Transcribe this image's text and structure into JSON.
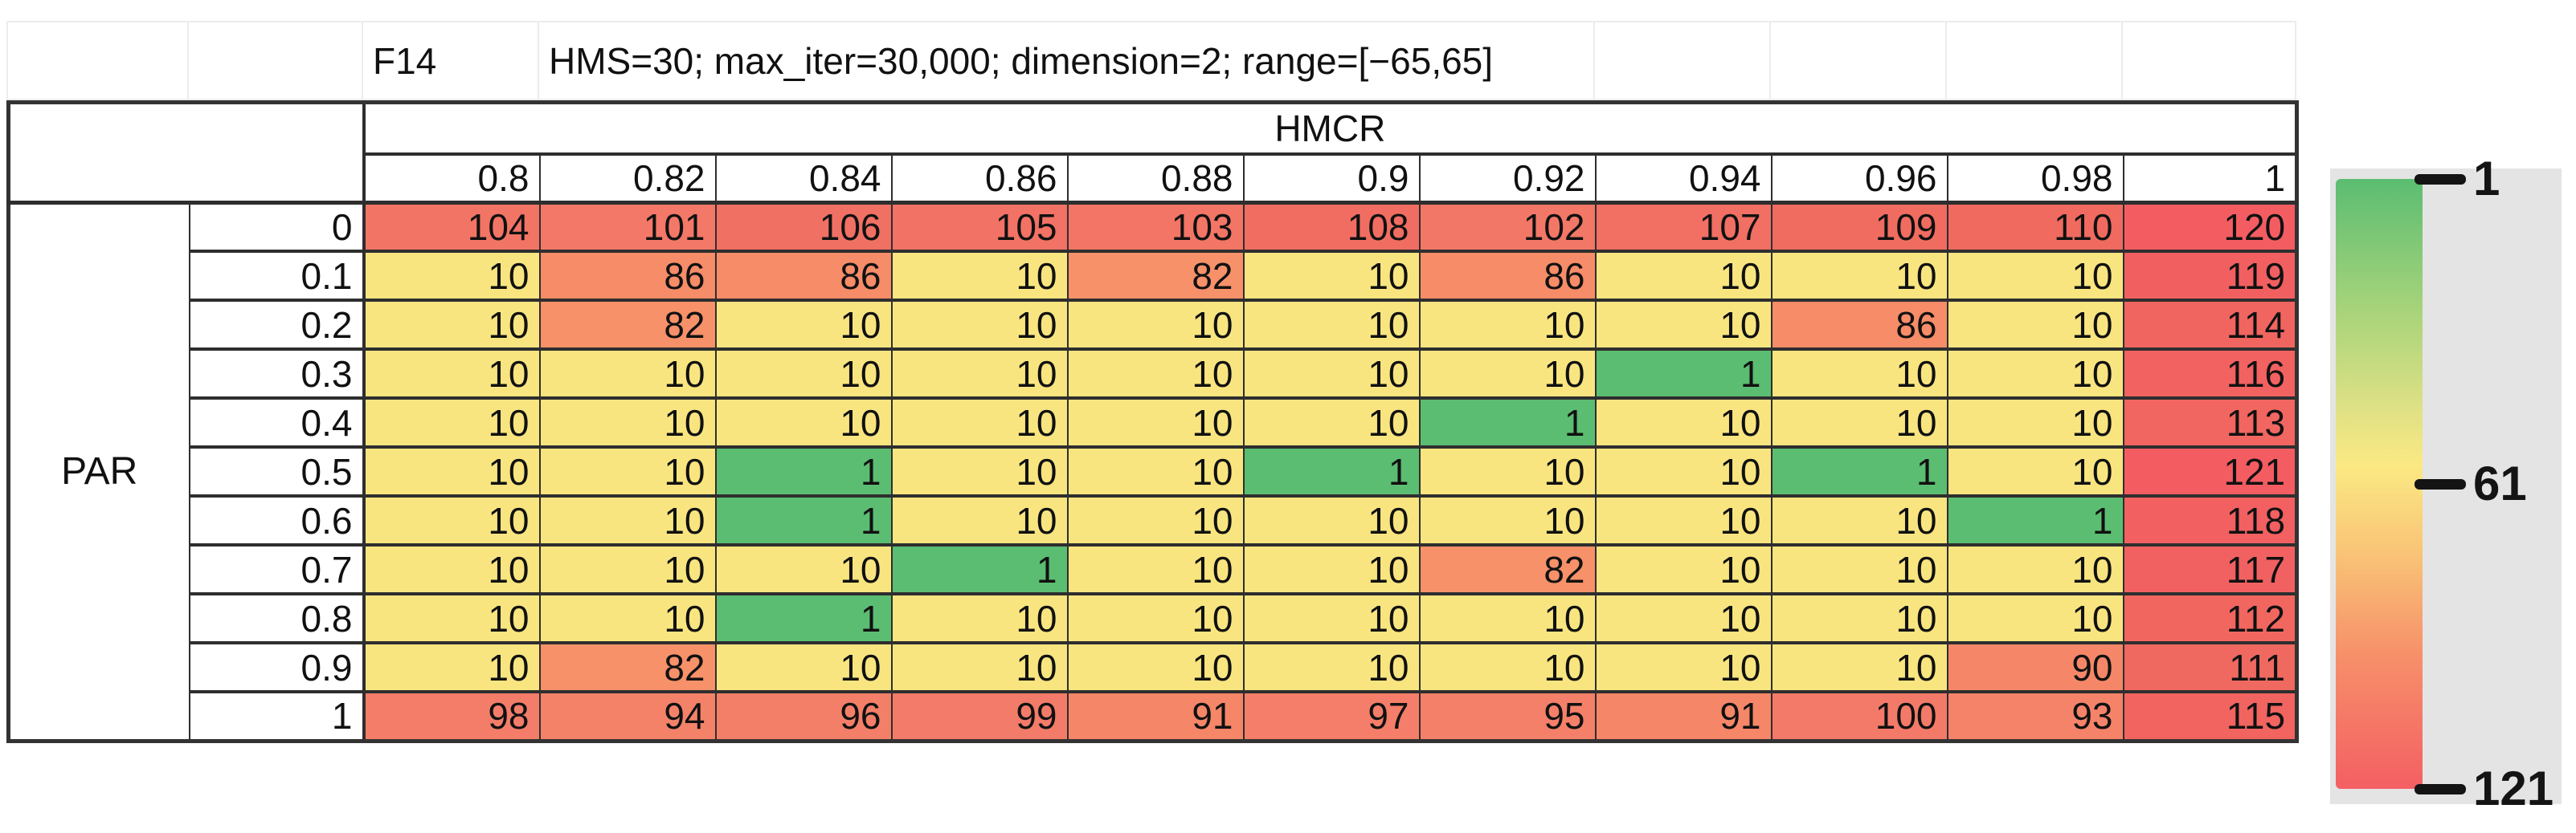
{
  "sheet_header": {
    "function_label": "F14",
    "settings": "HMS=30; max_iter=30,000; dimension=2; range=[−65,65]"
  },
  "chart_data": {
    "type": "heatmap",
    "title": "F14 — HMS=30; max_iter=30,000; dimension=2; range=[−65,65]",
    "x_axis_label": "HMCR",
    "y_axis_label": "PAR",
    "x_categories": [
      "0.8",
      "0.82",
      "0.84",
      "0.86",
      "0.88",
      "0.9",
      "0.92",
      "0.94",
      "0.96",
      "0.98",
      "1"
    ],
    "y_categories": [
      "0",
      "0.1",
      "0.2",
      "0.3",
      "0.4",
      "0.5",
      "0.6",
      "0.7",
      "0.8",
      "0.9",
      "1"
    ],
    "matrix": [
      [
        104,
        101,
        106,
        105,
        103,
        108,
        102,
        107,
        109,
        110,
        120
      ],
      [
        10,
        86,
        86,
        10,
        82,
        10,
        86,
        10,
        10,
        10,
        119
      ],
      [
        10,
        82,
        10,
        10,
        10,
        10,
        10,
        10,
        86,
        10,
        114
      ],
      [
        10,
        10,
        10,
        10,
        10,
        10,
        10,
        1,
        10,
        10,
        116
      ],
      [
        10,
        10,
        10,
        10,
        10,
        10,
        1,
        10,
        10,
        10,
        113
      ],
      [
        10,
        10,
        1,
        10,
        10,
        1,
        10,
        10,
        1,
        10,
        121
      ],
      [
        10,
        10,
        1,
        10,
        10,
        10,
        10,
        10,
        10,
        1,
        118
      ],
      [
        10,
        10,
        10,
        1,
        10,
        10,
        82,
        10,
        10,
        10,
        117
      ],
      [
        10,
        10,
        1,
        10,
        10,
        10,
        10,
        10,
        10,
        10,
        112
      ],
      [
        10,
        82,
        10,
        10,
        10,
        10,
        10,
        10,
        10,
        90,
        111
      ],
      [
        98,
        94,
        96,
        99,
        91,
        97,
        95,
        91,
        100,
        93,
        115
      ]
    ],
    "legend": {
      "min": 1,
      "mid": 61,
      "max": 121,
      "min_label": "1",
      "mid_label": "61",
      "max_label": "121",
      "position": "right"
    },
    "color_stops": [
      {
        "v": 1,
        "c": "#5BBD72"
      },
      {
        "v": 10,
        "c": "#F9E580"
      },
      {
        "v": 86,
        "c": "#F68C68"
      },
      {
        "v": 100,
        "c": "#F37A69"
      },
      {
        "v": 110,
        "c": "#F06A60"
      },
      {
        "v": 121,
        "c": "#F35C61"
      }
    ],
    "legend_gradient": [
      "#5BBD72 0%",
      "#A9D47B 22%",
      "#E0E185 38%",
      "#FBE983 47%",
      "#F9C276 62%",
      "#F6906A 78%",
      "#F45F63 100%"
    ],
    "grid": true
  },
  "colors": {
    "grid_dark": "#2e2e2e",
    "grid_light": "#ececec",
    "legend_panel": "#e4e4e4"
  }
}
